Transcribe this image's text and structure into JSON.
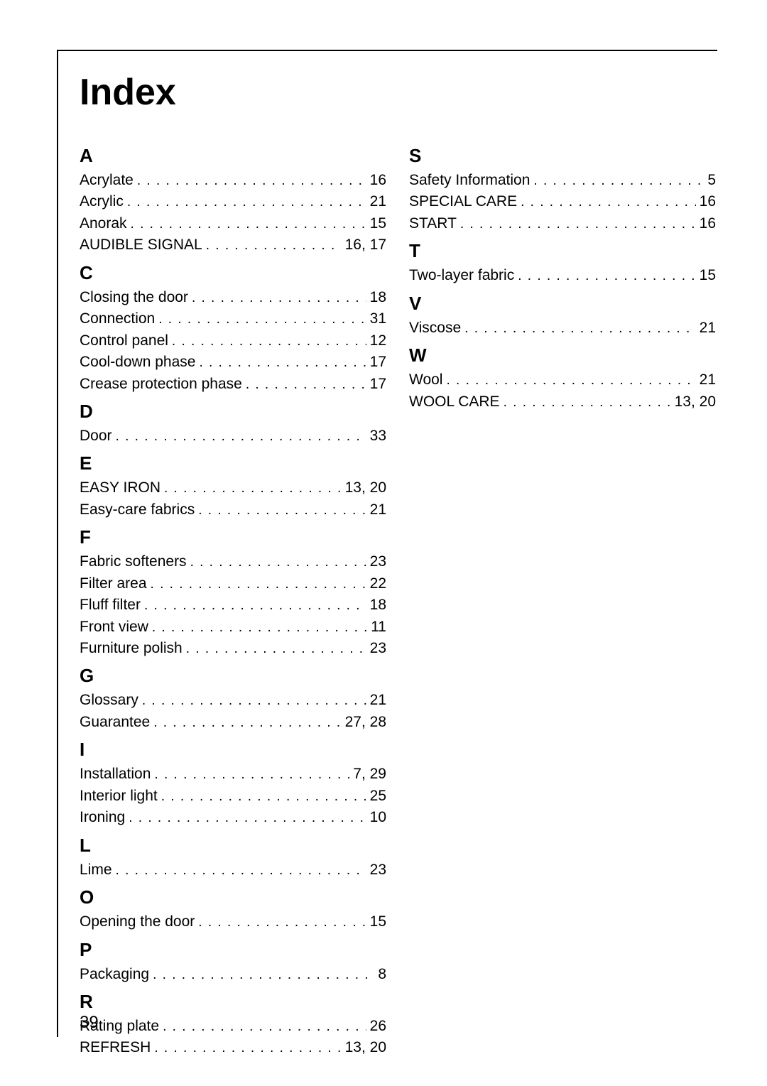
{
  "title": "Index",
  "page_number": "39",
  "typography": {
    "title_fontsize": 52,
    "title_weight": "bold",
    "letter_fontsize": 26,
    "letter_weight": "bold",
    "entry_fontsize": 21,
    "page_number_fontsize": 24,
    "text_color": "#000000",
    "background_color": "#ffffff",
    "border_color": "#000000",
    "border_width": 2
  },
  "left_column": [
    {
      "letter": "A",
      "entries": [
        {
          "label": "Acrylate",
          "page": "16"
        },
        {
          "label": "Acrylic",
          "page": "21"
        },
        {
          "label": "Anorak",
          "page": "15"
        },
        {
          "label": "AUDIBLE SIGNAL",
          "page": "16, 17"
        }
      ]
    },
    {
      "letter": "C",
      "entries": [
        {
          "label": "Closing the door",
          "page": "18"
        },
        {
          "label": "Connection",
          "page": "31"
        },
        {
          "label": "Control panel",
          "page": "12"
        },
        {
          "label": "Cool-down phase",
          "page": "17"
        },
        {
          "label": "Crease protection phase",
          "page": "17"
        }
      ]
    },
    {
      "letter": "D",
      "entries": [
        {
          "label": "Door",
          "page": "33"
        }
      ]
    },
    {
      "letter": "E",
      "entries": [
        {
          "label": "EASY IRON",
          "page": "13, 20"
        },
        {
          "label": "Easy-care fabrics",
          "page": "21"
        }
      ]
    },
    {
      "letter": "F",
      "entries": [
        {
          "label": "Fabric softeners",
          "page": "23"
        },
        {
          "label": "Filter area",
          "page": "22"
        },
        {
          "label": "Fluff filter",
          "page": "18"
        },
        {
          "label": "Front view",
          "page": "11"
        },
        {
          "label": "Furniture polish",
          "page": "23"
        }
      ]
    },
    {
      "letter": "G",
      "entries": [
        {
          "label": "Glossary",
          "page": "21"
        },
        {
          "label": "Guarantee",
          "page": "27, 28"
        }
      ]
    },
    {
      "letter": "I",
      "entries": [
        {
          "label": "Installation",
          "page": "7, 29"
        },
        {
          "label": "Interior light",
          "page": "25"
        },
        {
          "label": "Ironing",
          "page": "10"
        }
      ]
    },
    {
      "letter": "L",
      "entries": [
        {
          "label": "Lime",
          "page": "23"
        }
      ]
    },
    {
      "letter": "O",
      "entries": [
        {
          "label": "Opening the door",
          "page": "15"
        }
      ]
    },
    {
      "letter": "P",
      "entries": [
        {
          "label": "Packaging",
          "page": "8"
        }
      ]
    },
    {
      "letter": "R",
      "entries": [
        {
          "label": "Rating plate",
          "page": "26"
        },
        {
          "label": "REFRESH",
          "page": "13, 20"
        }
      ]
    }
  ],
  "right_column": [
    {
      "letter": "S",
      "entries": [
        {
          "label": "Safety Information",
          "page": "5"
        },
        {
          "label": "SPECIAL CARE",
          "page": "16"
        },
        {
          "label": "START",
          "page": "16"
        }
      ]
    },
    {
      "letter": "T",
      "entries": [
        {
          "label": "Two-layer fabric",
          "page": "15"
        }
      ]
    },
    {
      "letter": "V",
      "entries": [
        {
          "label": "Viscose",
          "page": "21"
        }
      ]
    },
    {
      "letter": "W",
      "entries": [
        {
          "label": "Wool",
          "page": "21"
        },
        {
          "label": "WOOL CARE",
          "page": "13, 20"
        }
      ]
    }
  ]
}
